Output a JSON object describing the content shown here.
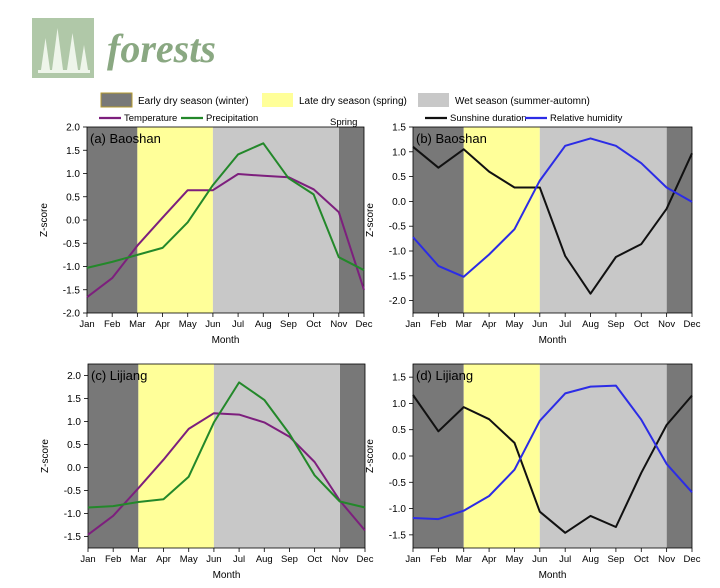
{
  "logo": {
    "word": "forests"
  },
  "colors": {
    "early_dry": "#787878",
    "late_dry": "#ffff99",
    "wet": "#c8c8c8",
    "temperature": "#7d1f7d",
    "precipitation": "#23882a",
    "sunshine": "#111111",
    "humidity": "#2c2ce6"
  },
  "season_legend": [
    {
      "label": "Early dry season (winter)",
      "color": "#787878"
    },
    {
      "label": "Late dry season (spring)",
      "color": "#ffff99"
    },
    {
      "label": "Wet season (summer-automn)",
      "color": "#c8c8c8"
    }
  ],
  "chart_data": [
    {
      "id": "a",
      "type": "line",
      "panel_label": "(a) Baoshan",
      "annotation": "Spring",
      "categories": [
        "Jan",
        "Feb",
        "Mar",
        "Apr",
        "May",
        "Jun",
        "Jul",
        "Aug",
        "Sep",
        "Oct",
        "Nov",
        "Dec"
      ],
      "xlabel": "Month",
      "ylabel": "Z-score",
      "ylim": [
        -2.0,
        2.0
      ],
      "yticks": [
        "-2.0",
        "-1.5",
        "-1.0",
        "-0.5",
        "0.0",
        "0.5",
        "1.0",
        "1.5",
        "2.0"
      ],
      "seasons": {
        "early_dry": [
          [
            0,
            2
          ],
          [
            10,
            11
          ]
        ],
        "late_dry": [
          [
            2,
            5
          ]
        ],
        "wet": [
          [
            5,
            10
          ]
        ]
      },
      "legend": [
        {
          "name": "Temperature",
          "color": "#7d1f7d"
        },
        {
          "name": "Precipitation",
          "color": "#23882a"
        }
      ],
      "series": [
        {
          "name": "Temperature",
          "color": "#7d1f7d",
          "values": [
            -1.66,
            -1.25,
            -0.55,
            0.05,
            0.64,
            0.64,
            0.99,
            0.95,
            0.92,
            0.66,
            0.17,
            -1.5
          ]
        },
        {
          "name": "Precipitation",
          "color": "#23882a",
          "values": [
            -1.03,
            -0.9,
            -0.75,
            -0.6,
            -0.05,
            0.75,
            1.41,
            1.65,
            0.9,
            0.55,
            -0.8,
            -1.08
          ]
        }
      ]
    },
    {
      "id": "b",
      "type": "line",
      "panel_label": "(b) Baoshan",
      "categories": [
        "Jan",
        "Feb",
        "Mar",
        "Apr",
        "May",
        "Jun",
        "Jul",
        "Aug",
        "Sep",
        "Oct",
        "Nov",
        "Dec"
      ],
      "xlabel": "Month",
      "ylabel": "Z-score",
      "ylim": [
        -2.25,
        1.5
      ],
      "yticks": [
        "-2.0",
        "-1.5",
        "-1.0",
        "-0.5",
        "0.0",
        "0.5",
        "1.0",
        "1.5"
      ],
      "seasons": {
        "early_dry": [
          [
            0,
            2
          ],
          [
            10,
            11
          ]
        ],
        "late_dry": [
          [
            2,
            5
          ]
        ],
        "wet": [
          [
            5,
            10
          ]
        ]
      },
      "legend": [
        {
          "name": "Sunshine duration",
          "color": "#111111"
        },
        {
          "name": "Relative humidity",
          "color": "#2c2ce6"
        }
      ],
      "series": [
        {
          "name": "Sunshine duration",
          "color": "#111111",
          "values": [
            1.1,
            0.68,
            1.05,
            0.6,
            0.28,
            0.28,
            -1.1,
            -1.86,
            -1.12,
            -0.86,
            -0.15,
            0.97
          ]
        },
        {
          "name": "Relative humidity",
          "color": "#2c2ce6",
          "values": [
            -0.72,
            -1.3,
            -1.52,
            -1.07,
            -0.56,
            0.42,
            1.12,
            1.27,
            1.12,
            0.77,
            0.28,
            -0.01
          ]
        }
      ]
    },
    {
      "id": "c",
      "type": "line",
      "panel_label": "(c) Lijiang",
      "categories": [
        "Jan",
        "Feb",
        "Mar",
        "Apr",
        "May",
        "Jun",
        "Jul",
        "Aug",
        "Sep",
        "Oct",
        "Nov",
        "Dec"
      ],
      "xlabel": "Month",
      "ylabel": "Z-score",
      "ylim": [
        -1.75,
        2.25
      ],
      "yticks": [
        "-1.5",
        "-1.0",
        "-0.5",
        "0.0",
        "0.5",
        "1.0",
        "1.5",
        "2.0"
      ],
      "seasons": {
        "early_dry": [
          [
            0,
            2
          ],
          [
            10,
            11
          ]
        ],
        "late_dry": [
          [
            2,
            5
          ]
        ],
        "wet": [
          [
            5,
            10
          ]
        ]
      },
      "series": [
        {
          "name": "Temperature",
          "color": "#7d1f7d",
          "values": [
            -1.46,
            -1.05,
            -0.45,
            0.17,
            0.84,
            1.18,
            1.15,
            0.98,
            0.67,
            0.12,
            -0.72,
            -1.37
          ]
        },
        {
          "name": "Precipitation",
          "color": "#23882a",
          "values": [
            -0.87,
            -0.84,
            -0.75,
            -0.69,
            -0.2,
            0.98,
            1.85,
            1.47,
            0.73,
            -0.17,
            -0.74,
            -0.87
          ]
        }
      ]
    },
    {
      "id": "d",
      "type": "line",
      "panel_label": "(d) Lijiang",
      "categories": [
        "Jan",
        "Feb",
        "Mar",
        "Apr",
        "May",
        "Jun",
        "Jul",
        "Aug",
        "Sep",
        "Oct",
        "Nov",
        "Dec"
      ],
      "xlabel": "Month",
      "ylabel": "Z-score",
      "ylim": [
        -1.75,
        1.75
      ],
      "yticks": [
        "-1.5",
        "-1.0",
        "-0.5",
        "0.0",
        "0.5",
        "1.0",
        "1.5"
      ],
      "seasons": {
        "early_dry": [
          [
            0,
            2
          ],
          [
            10,
            11
          ]
        ],
        "late_dry": [
          [
            2,
            5
          ]
        ],
        "wet": [
          [
            5,
            10
          ]
        ]
      },
      "series": [
        {
          "name": "Sunshine duration",
          "color": "#111111",
          "values": [
            1.16,
            0.47,
            0.93,
            0.7,
            0.25,
            -1.06,
            -1.46,
            -1.14,
            -1.35,
            -0.32,
            0.59,
            1.15
          ]
        },
        {
          "name": "Relative humidity",
          "color": "#2c2ce6",
          "values": [
            -1.18,
            -1.2,
            -1.04,
            -0.76,
            -0.26,
            0.67,
            1.19,
            1.32,
            1.34,
            0.69,
            -0.15,
            -0.69
          ]
        }
      ]
    }
  ]
}
